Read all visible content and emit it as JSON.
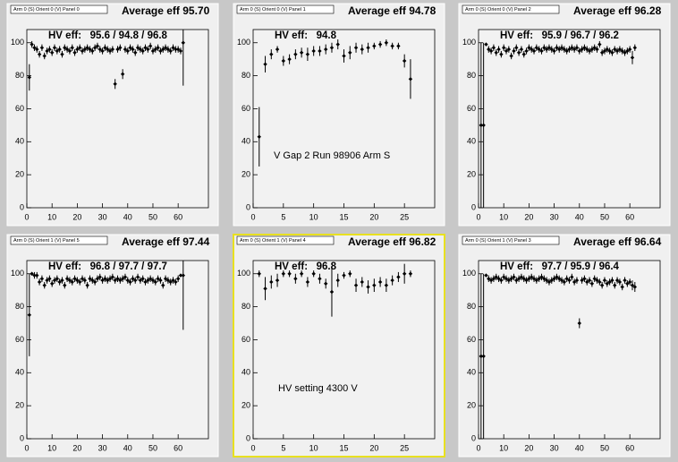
{
  "chart_data": [
    {
      "type": "scatter",
      "title": "Arm 0 (S) Orient 0 (V) Panel 0",
      "stat": "Average eff 95.70",
      "annotation": "HV eff:   95.6 / 94.8 / 96.8",
      "color": "#000000",
      "xlim": [
        0,
        72
      ],
      "ylim": [
        0,
        108
      ],
      "xticks": [
        0,
        10,
        20,
        30,
        40,
        50,
        60
      ],
      "yticks": [
        0,
        20,
        40,
        60,
        80,
        100
      ],
      "x": [
        1,
        2,
        3,
        4,
        5,
        6,
        7,
        8,
        9,
        10,
        11,
        12,
        13,
        14,
        15,
        16,
        17,
        18,
        19,
        20,
        21,
        22,
        23,
        24,
        25,
        26,
        27,
        28,
        29,
        30,
        31,
        32,
        33,
        34,
        35,
        36,
        37,
        38,
        39,
        40,
        41,
        42,
        43,
        44,
        45,
        46,
        47,
        48,
        49,
        50,
        51,
        52,
        53,
        54,
        55,
        56,
        57,
        58,
        59,
        60,
        61,
        62
      ],
      "values": [
        79,
        99,
        97,
        96,
        93,
        97,
        92,
        95,
        96,
        94,
        97,
        95,
        96,
        93,
        97,
        96,
        95,
        97,
        94,
        96,
        97,
        95,
        96,
        97,
        96,
        95,
        97,
        98,
        96,
        95,
        97,
        96,
        95,
        96,
        75,
        96,
        97,
        81,
        96,
        95,
        97,
        96,
        94,
        97,
        96,
        95,
        97,
        96,
        98,
        95,
        96,
        97,
        95,
        96,
        97,
        96,
        95,
        97,
        96,
        96,
        95,
        100
      ],
      "errors": [
        8,
        2,
        2,
        2,
        2,
        2,
        2,
        2,
        2,
        2,
        2,
        2,
        2,
        2,
        2,
        2,
        2,
        2,
        2,
        2,
        2,
        2,
        2,
        2,
        2,
        2,
        2,
        2,
        2,
        2,
        2,
        2,
        2,
        2,
        3,
        2,
        2,
        3,
        2,
        2,
        2,
        2,
        2,
        2,
        2,
        2,
        2,
        2,
        2,
        2,
        2,
        2,
        2,
        2,
        2,
        2,
        2,
        2,
        2,
        2,
        2,
        26
      ]
    },
    {
      "type": "scatter",
      "title": "Arm 0 (S) Orient 0 (V) Panel 1",
      "stat": "Average eff 94.78",
      "annotation": "HV eff:   94.8",
      "note": "V Gap 2 Run 98906 Arm S",
      "color": "#000000",
      "xlim": [
        0,
        30
      ],
      "ylim": [
        0,
        108
      ],
      "xticks": [
        0,
        5,
        10,
        15,
        20,
        25
      ],
      "yticks": [
        0,
        20,
        40,
        60,
        80,
        100
      ],
      "x": [
        1,
        2,
        3,
        4,
        5,
        6,
        7,
        8,
        9,
        10,
        11,
        12,
        13,
        14,
        15,
        16,
        17,
        18,
        19,
        20,
        21,
        22,
        23,
        24,
        25,
        26
      ],
      "values": [
        43,
        87,
        93,
        96,
        89,
        90,
        93,
        94,
        93,
        95,
        95,
        96,
        97,
        99,
        92,
        94,
        97,
        96,
        97,
        98,
        99,
        100,
        98,
        98,
        89,
        78
      ],
      "errors": [
        18,
        5,
        3,
        2,
        3,
        3,
        3,
        3,
        4,
        3,
        3,
        3,
        3,
        3,
        4,
        4,
        3,
        3,
        3,
        2,
        2,
        2,
        2,
        2,
        4,
        12
      ]
    },
    {
      "type": "scatter",
      "title": "Arm 0 (S) Orient 0 (V) Panel 2",
      "stat": "Average eff 96.28",
      "annotation": "HV eff:   95.9 / 96.7 / 96.2",
      "color": "#000000",
      "xlim": [
        0,
        72
      ],
      "ylim": [
        0,
        108
      ],
      "xticks": [
        0,
        10,
        20,
        30,
        40,
        50,
        60
      ],
      "yticks": [
        0,
        20,
        40,
        60,
        80,
        100
      ],
      "x": [
        1,
        2,
        3,
        4,
        5,
        6,
        7,
        8,
        9,
        10,
        11,
        12,
        13,
        14,
        15,
        16,
        17,
        18,
        19,
        20,
        21,
        22,
        23,
        24,
        25,
        26,
        27,
        28,
        29,
        30,
        31,
        32,
        33,
        34,
        35,
        36,
        37,
        38,
        39,
        40,
        41,
        42,
        43,
        44,
        45,
        46,
        47,
        48,
        49,
        50,
        51,
        52,
        53,
        54,
        55,
        56,
        57,
        58,
        59,
        60,
        61,
        62
      ],
      "values": [
        50,
        50,
        99,
        96,
        95,
        97,
        94,
        96,
        93,
        97,
        95,
        96,
        92,
        95,
        97,
        94,
        96,
        93,
        95,
        97,
        96,
        95,
        97,
        96,
        95,
        97,
        96,
        97,
        96,
        95,
        97,
        96,
        97,
        96,
        95,
        96,
        97,
        96,
        97,
        95,
        96,
        97,
        96,
        95,
        96,
        97,
        96,
        99,
        94,
        95,
        96,
        95,
        94,
        96,
        95,
        96,
        95,
        94,
        95,
        96,
        91,
        97
      ],
      "errors": [
        50,
        50,
        1,
        2,
        2,
        2,
        2,
        2,
        2,
        2,
        2,
        2,
        2,
        2,
        2,
        2,
        2,
        2,
        2,
        2,
        2,
        2,
        2,
        2,
        2,
        2,
        2,
        2,
        2,
        2,
        2,
        2,
        2,
        2,
        2,
        2,
        2,
        2,
        2,
        2,
        2,
        2,
        2,
        2,
        2,
        2,
        2,
        2,
        2,
        2,
        2,
        2,
        2,
        2,
        2,
        2,
        2,
        2,
        2,
        2,
        4,
        2
      ]
    },
    {
      "type": "scatter",
      "title": "Arm 0 (S) Orient 1 (V) Panel 5",
      "stat": "Average eff 97.44",
      "annotation": "HV eff:   96.8 / 97.7 / 97.7",
      "color": "#000000",
      "xlim": [
        0,
        72
      ],
      "ylim": [
        0,
        108
      ],
      "xticks": [
        0,
        10,
        20,
        30,
        40,
        50,
        60
      ],
      "yticks": [
        0,
        20,
        40,
        60,
        80,
        100
      ],
      "x": [
        1,
        2,
        3,
        4,
        5,
        6,
        7,
        8,
        9,
        10,
        11,
        12,
        13,
        14,
        15,
        16,
        17,
        18,
        19,
        20,
        21,
        22,
        23,
        24,
        25,
        26,
        27,
        28,
        29,
        30,
        31,
        32,
        33,
        34,
        35,
        36,
        37,
        38,
        39,
        40,
        41,
        42,
        43,
        44,
        45,
        46,
        47,
        48,
        49,
        50,
        51,
        52,
        53,
        54,
        55,
        56,
        57,
        58,
        59,
        60,
        61,
        62
      ],
      "values": [
        75,
        100,
        99,
        99,
        95,
        97,
        93,
        96,
        97,
        94,
        96,
        97,
        95,
        96,
        93,
        97,
        96,
        95,
        97,
        96,
        95,
        97,
        96,
        93,
        97,
        96,
        95,
        97,
        98,
        96,
        97,
        96,
        97,
        98,
        96,
        97,
        96,
        97,
        98,
        96,
        95,
        97,
        96,
        98,
        96,
        97,
        95,
        96,
        97,
        96,
        95,
        97,
        96,
        93,
        97,
        96,
        95,
        96,
        95,
        97,
        99,
        99
      ],
      "errors": [
        25,
        1,
        2,
        2,
        2,
        2,
        2,
        2,
        2,
        2,
        2,
        2,
        2,
        2,
        2,
        2,
        2,
        2,
        2,
        2,
        2,
        2,
        2,
        2,
        2,
        2,
        2,
        2,
        2,
        2,
        2,
        2,
        2,
        2,
        2,
        2,
        2,
        2,
        2,
        2,
        2,
        2,
        2,
        2,
        2,
        2,
        2,
        2,
        2,
        2,
        2,
        2,
        2,
        2,
        2,
        2,
        2,
        2,
        2,
        2,
        1,
        33
      ]
    },
    {
      "type": "scatter",
      "title": "Arm 0 (S) Orient 1 (V) Panel 4",
      "stat": "Average eff 96.82",
      "annotation": "HV eff:   96.8",
      "note": "HV setting 4300 V",
      "color": "#000000",
      "xlim": [
        0,
        30
      ],
      "ylim": [
        0,
        108
      ],
      "xticks": [
        0,
        5,
        10,
        15,
        20,
        25
      ],
      "yticks": [
        0,
        20,
        40,
        60,
        80,
        100
      ],
      "x": [
        1,
        2,
        3,
        4,
        5,
        6,
        7,
        8,
        9,
        10,
        11,
        12,
        13,
        14,
        15,
        16,
        17,
        18,
        19,
        20,
        21,
        22,
        23,
        24,
        25,
        26
      ],
      "values": [
        100,
        91,
        95,
        96,
        100,
        100,
        97,
        100,
        95,
        100,
        97,
        94,
        89,
        96,
        99,
        100,
        93,
        95,
        92,
        93,
        95,
        93,
        96,
        98,
        100,
        100
      ],
      "errors": [
        2,
        7,
        4,
        4,
        2,
        2,
        3,
        2,
        3,
        2,
        3,
        3,
        15,
        4,
        2,
        2,
        4,
        3,
        4,
        4,
        3,
        4,
        3,
        3,
        6,
        2
      ]
    },
    {
      "type": "scatter",
      "title": "Arm 0 (S) Orient 1 (V) Panel 3",
      "stat": "Average eff 96.64",
      "annotation": "HV eff:   97.7 / 95.9 / 96.4",
      "color": "#000000",
      "xlim": [
        0,
        72
      ],
      "ylim": [
        0,
        108
      ],
      "xticks": [
        0,
        10,
        20,
        30,
        40,
        50,
        60
      ],
      "yticks": [
        0,
        20,
        40,
        60,
        80,
        100
      ],
      "x": [
        1,
        2,
        3,
        4,
        5,
        6,
        7,
        8,
        9,
        10,
        11,
        12,
        13,
        14,
        15,
        16,
        17,
        18,
        19,
        20,
        21,
        22,
        23,
        24,
        25,
        26,
        27,
        28,
        29,
        30,
        31,
        32,
        33,
        34,
        35,
        36,
        37,
        38,
        39,
        40,
        41,
        42,
        43,
        44,
        45,
        46,
        47,
        48,
        49,
        50,
        51,
        52,
        53,
        54,
        55,
        56,
        57,
        58,
        59,
        60,
        61,
        62
      ],
      "values": [
        50,
        50,
        99,
        97,
        96,
        97,
        98,
        97,
        96,
        98,
        97,
        96,
        97,
        98,
        96,
        97,
        98,
        97,
        96,
        97,
        98,
        97,
        96,
        97,
        98,
        97,
        96,
        95,
        96,
        97,
        98,
        97,
        96,
        95,
        97,
        96,
        98,
        95,
        96,
        70,
        96,
        97,
        95,
        96,
        94,
        97,
        96,
        95,
        93,
        96,
        94,
        95,
        96,
        93,
        96,
        95,
        92,
        96,
        94,
        95,
        93,
        92
      ],
      "errors": [
        50,
        50,
        1,
        2,
        2,
        2,
        2,
        2,
        2,
        2,
        2,
        2,
        2,
        2,
        2,
        2,
        2,
        2,
        2,
        2,
        2,
        2,
        2,
        2,
        2,
        2,
        2,
        2,
        2,
        2,
        2,
        2,
        2,
        2,
        2,
        2,
        2,
        2,
        2,
        3,
        2,
        2,
        2,
        2,
        2,
        2,
        2,
        2,
        2,
        2,
        2,
        2,
        2,
        2,
        2,
        2,
        2,
        2,
        2,
        2,
        3,
        3
      ]
    }
  ]
}
